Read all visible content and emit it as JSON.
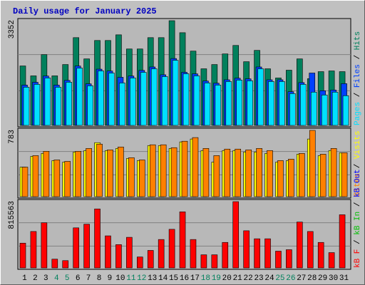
{
  "legend_separator": " / ",
  "chart_data": [
    {
      "type": "bar",
      "title": "Daily usage for January 2025",
      "ylim": [
        0,
        3352
      ],
      "series": [
        {
          "name": "Hits",
          "color": "#00805c",
          "values": [
            1903,
            1586,
            2265,
            1586,
            1948,
            2809,
            2129,
            2718,
            2718,
            2899,
            2446,
            2446,
            2809,
            2809,
            3352,
            2967,
            2378,
            1812,
            1948,
            2288,
            2559,
            2039,
            2401,
            1812,
            1518,
            1767,
            2129,
            1495,
            1721,
            1744,
            1721
          ]
        },
        {
          "name": "Files",
          "color": "#0040ff",
          "values": [
            1290,
            1380,
            1580,
            1290,
            1440,
            1900,
            1330,
            1800,
            1740,
            1540,
            1580,
            1760,
            1870,
            1620,
            2140,
            1699,
            1650,
            1420,
            1350,
            1460,
            1510,
            1490,
            1870,
            1460,
            1460,
            1080,
            1370,
            1676,
            1110,
            1133,
            1336
          ]
        },
        {
          "name": "Pages",
          "color": "#00e0ff",
          "values": [
            1223,
            1314,
            1518,
            1223,
            1382,
            1835,
            1268,
            1744,
            1676,
            1359,
            1518,
            1699,
            1812,
            1563,
            2084,
            1653,
            1586,
            1359,
            1291,
            1404,
            1450,
            1427,
            1812,
            1404,
            1404,
            1019,
            1314,
            1065,
            974,
            1065,
            951
          ]
        }
      ]
    },
    {
      "type": "bar",
      "ylim": [
        0,
        783
      ],
      "series": [
        {
          "name": "Visits",
          "color": "#ffff00",
          "values": [
            349,
            477,
            511,
            426,
            408,
            528,
            545,
            638,
            545,
            570,
            451,
            426,
            604,
            604,
            570,
            647,
            681,
            545,
            408,
            545,
            545,
            528,
            528,
            511,
            408,
            426,
            502,
            681,
            485,
            545,
            519
          ]
        },
        {
          "name": "Sites",
          "color": "#ff8000",
          "values": [
            349,
            485,
            536,
            434,
            417,
            536,
            570,
            621,
            553,
            587,
            460,
            434,
            613,
            613,
            579,
            655,
            698,
            570,
            485,
            562,
            562,
            553,
            570,
            545,
            426,
            443,
            511,
            783,
            502,
            570,
            519
          ]
        }
      ]
    },
    {
      "type": "bar",
      "ylim": [
        0,
        815563
      ],
      "categories": [
        "1",
        "2",
        "3",
        "4",
        "5",
        "6",
        "7",
        "8",
        "9",
        "10",
        "11",
        "12",
        "13",
        "14",
        "15",
        "16",
        "17",
        "18",
        "19",
        "20",
        "21",
        "22",
        "23",
        "24",
        "25",
        "26",
        "27",
        "28",
        "29",
        "30",
        "31"
      ],
      "category_colors": [
        "#000000",
        "#000000",
        "#000000",
        "#00805c",
        "#00805c",
        "#000000",
        "#000000",
        "#000000",
        "#000000",
        "#000000",
        "#00805c",
        "#00805c",
        "#000000",
        "#000000",
        "#000000",
        "#000000",
        "#000000",
        "#00805c",
        "#00805c",
        "#000000",
        "#000000",
        "#000000",
        "#000000",
        "#000000",
        "#00805c",
        "#00805c",
        "#000000",
        "#000000",
        "#000000",
        "#000000",
        "#000000"
      ],
      "series": [
        {
          "name": "kB F",
          "color": "#ff0000",
          "values": [
            304708,
            448100,
            555644,
            107544,
            89620,
            492910,
            537720,
            725922,
            394328,
            286784,
            376404,
            134430,
            215088,
            349518,
            474986,
            690074,
            349518,
            161316,
            161316,
            313670,
            815563,
            457062,
            358480,
            358480,
            206126,
            224050,
            564606,
            448100,
            313670,
            188202,
            654226
          ]
        }
      ],
      "legend_extra": [
        {
          "name": "kB In",
          "color": "#00c000"
        },
        {
          "name": "kB Out",
          "color": "#0000ff"
        }
      ]
    }
  ]
}
